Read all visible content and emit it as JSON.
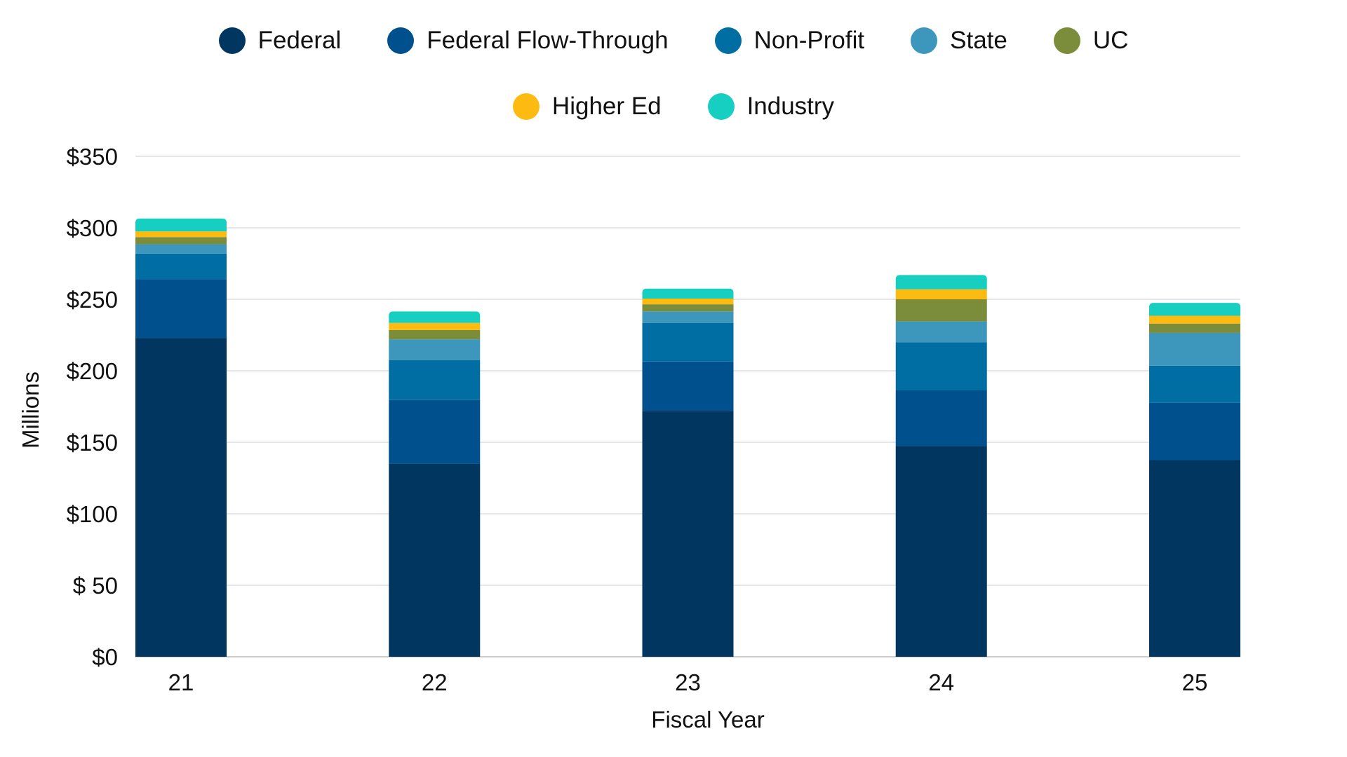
{
  "chart_data": {
    "type": "bar",
    "stacked": true,
    "title": "",
    "xlabel": "Fiscal Year",
    "ylabel": "Millions",
    "ylim": [
      0,
      350
    ],
    "yticks": [
      0,
      50,
      100,
      150,
      200,
      250,
      300,
      350
    ],
    "ytick_labels": [
      "$0",
      "$ 50",
      "$100",
      "$150",
      "$200",
      "$250",
      "$300",
      "$350"
    ],
    "grid": true,
    "legend_placement": "top",
    "categories": [
      "21",
      "22",
      "23",
      "24",
      "25"
    ],
    "series": [
      {
        "name": "Federal",
        "color": "#003660",
        "values": [
          223,
          135,
          172,
          147.5,
          137.5
        ]
      },
      {
        "name": "Federal Flow-Through",
        "color": "#00508d",
        "values": [
          41,
          44.5,
          34.5,
          39,
          40
        ]
      },
      {
        "name": "Non-Profit",
        "color": "#006ea2",
        "values": [
          18,
          28,
          27,
          33.5,
          26
        ]
      },
      {
        "name": "State",
        "color": "#3d97bd",
        "values": [
          6.5,
          14.5,
          8,
          14.5,
          23
        ]
      },
      {
        "name": "UC",
        "color": "#7b8d3a",
        "values": [
          5,
          6.5,
          5,
          15.5,
          6.5
        ]
      },
      {
        "name": "Higher Ed",
        "color": "#fdbb12",
        "values": [
          4,
          5,
          4,
          7,
          5.5
        ]
      },
      {
        "name": "Industry",
        "color": "#17cfc0",
        "values": [
          9,
          8,
          7,
          10,
          9
        ]
      }
    ]
  }
}
